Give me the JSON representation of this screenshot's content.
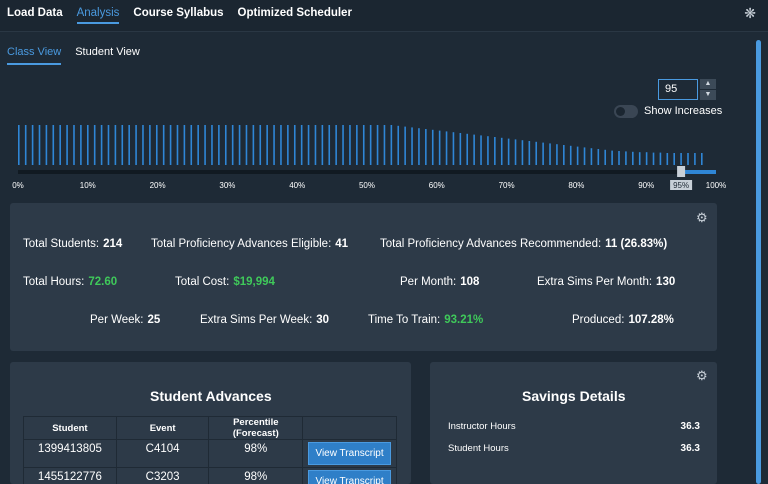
{
  "nav": {
    "tabs": [
      {
        "label": "Load Data"
      },
      {
        "label": "Analysis"
      },
      {
        "label": "Course Syllabus"
      },
      {
        "label": "Optimized Scheduler"
      }
    ],
    "settings_icon": "gear-icon"
  },
  "subtabs": [
    {
      "label": "Class View"
    },
    {
      "label": "Student View"
    }
  ],
  "controls": {
    "percentile_value": "95",
    "show_increases_label": "Show Increases",
    "show_increases_on": false
  },
  "chart_data": {
    "type": "bar",
    "bar_count": 100,
    "bar_color": "#2f86d6",
    "x_ticks": [
      "0%",
      "10%",
      "20%",
      "30%",
      "40%",
      "50%",
      "60%",
      "70%",
      "80%",
      "90%",
      "100%"
    ],
    "slider_value_label": "95%",
    "slider_value": 0.95,
    "values": [
      100,
      100,
      100,
      100,
      100,
      100,
      100,
      100,
      100,
      100,
      100,
      100,
      100,
      100,
      100,
      100,
      100,
      100,
      100,
      100,
      100,
      100,
      100,
      100,
      100,
      100,
      100,
      100,
      100,
      100,
      100,
      100,
      100,
      100,
      100,
      100,
      100,
      100,
      100,
      100,
      100,
      100,
      100,
      100,
      100,
      100,
      100,
      100,
      100,
      100,
      100,
      100,
      100,
      100,
      100,
      98,
      96,
      94,
      92,
      90,
      88,
      86,
      84,
      82,
      80,
      78,
      76,
      74,
      72,
      70,
      68,
      66,
      64,
      62,
      60,
      58,
      56,
      54,
      52,
      50,
      48,
      46,
      44,
      42,
      40,
      38,
      36,
      35,
      34,
      33,
      32,
      32,
      31,
      31,
      30,
      30,
      30,
      30,
      30,
      30
    ],
    "ylim": [
      0,
      100
    ]
  },
  "stats": {
    "total_students_label": "Total Students:",
    "total_students": "214",
    "eligible_label": "Total Proficiency Advances Eligible:",
    "eligible": "41",
    "recommended_label": "Total Proficiency Advances Recommended:",
    "recommended": "11 (26.83%)",
    "total_hours_label": "Total Hours:",
    "total_hours": "72.60",
    "total_cost_label": "Total Cost:",
    "total_cost": "$19,994",
    "per_month_label": "Per Month:",
    "per_month": "108",
    "extra_month_label": "Extra Sims Per Month:",
    "extra_month": "130",
    "per_week_label": "Per Week:",
    "per_week": "25",
    "extra_week_label": "Extra Sims Per Week:",
    "extra_week": "30",
    "time_to_train_label": "Time To Train:",
    "time_to_train": "93.21%",
    "produced_label": "Produced:",
    "produced": "107.28%"
  },
  "advances": {
    "title": "Student Advances",
    "columns": [
      "Student",
      "Event",
      "Percentile (Forecast)",
      ""
    ],
    "rows": [
      {
        "student": "1399413805",
        "event": "C4104",
        "percentile": "98%",
        "button": "View Transcript"
      },
      {
        "student": "1455122776",
        "event": "C3203",
        "percentile": "98%",
        "button": "View Transcript"
      }
    ]
  },
  "savings": {
    "title": "Savings Details",
    "rows": [
      {
        "label": "Instructor Hours",
        "value": "36.3"
      },
      {
        "label": "Student Hours",
        "value": "36.3"
      }
    ]
  }
}
